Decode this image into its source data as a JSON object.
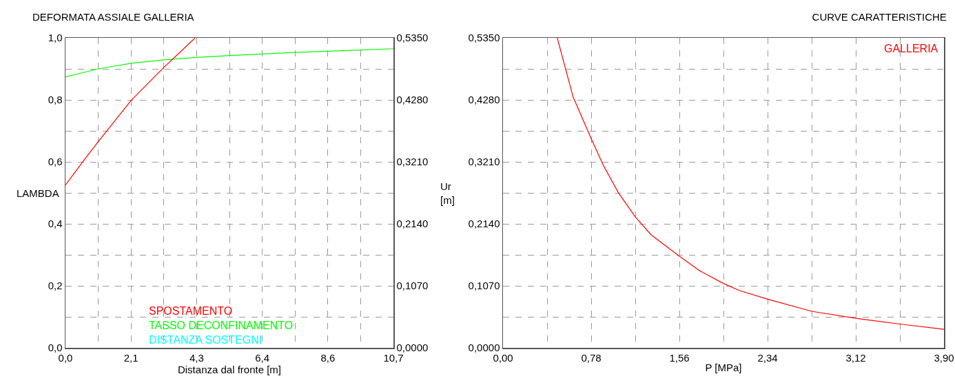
{
  "chart_data": [
    {
      "type": "line",
      "title": "DEFORMATA ASSIALE GALLERIA",
      "xlabel": "Distanza dal fronte [m]",
      "ylabel": "LAMBDA",
      "y2label": "Ur\n[m]",
      "legend": "bottom",
      "grid": true,
      "marker": "none",
      "line_style": "solid",
      "xlim": [
        0,
        10.7
      ],
      "xticks": [
        {
          "value": 0,
          "label": "0,0"
        },
        {
          "value": 1.07,
          "label": null
        },
        {
          "value": 2.14,
          "label": "2,1"
        },
        {
          "value": 3.21,
          "label": null
        },
        {
          "value": 4.28,
          "label": "4,3"
        },
        {
          "value": 5.35,
          "label": null
        },
        {
          "value": 6.42,
          "label": "6,4"
        },
        {
          "value": 7.49,
          "label": null
        },
        {
          "value": 8.56,
          "label": "8,6"
        },
        {
          "value": 9.63,
          "label": null
        },
        {
          "value": 10.7,
          "label": "10,7"
        }
      ],
      "ylim": [
        0,
        1
      ],
      "yticks": [
        {
          "value": 0,
          "label": "0,0"
        },
        {
          "value": 0.1,
          "label": null
        },
        {
          "value": 0.2,
          "label": "0,2"
        },
        {
          "value": 0.3,
          "label": null
        },
        {
          "value": 0.4,
          "label": "0,4"
        },
        {
          "value": 0.5,
          "label": null
        },
        {
          "value": 0.6,
          "label": "0,6"
        },
        {
          "value": 0.7,
          "label": null
        },
        {
          "value": 0.8,
          "label": "0,8"
        },
        {
          "value": 0.9,
          "label": null
        },
        {
          "value": 1,
          "label": "1,0"
        }
      ],
      "y2lim": [
        0,
        0.535
      ],
      "y2ticks": [
        {
          "value": 0,
          "label": "0,0000"
        },
        {
          "value": 0.0535,
          "label": null
        },
        {
          "value": 0.107,
          "label": "0,1070"
        },
        {
          "value": 0.1605,
          "label": null
        },
        {
          "value": 0.214,
          "label": "0,2140"
        },
        {
          "value": 0.2675,
          "label": null
        },
        {
          "value": 0.321,
          "label": "0,3210"
        },
        {
          "value": 0.3745,
          "label": null
        },
        {
          "value": 0.428,
          "label": "0,4280"
        },
        {
          "value": 0.4815,
          "label": null
        },
        {
          "value": 0.535,
          "label": "0,5350"
        }
      ],
      "series": [
        {
          "name": "SPOSTAMENTO",
          "color": "#ff0000",
          "axis": "y2",
          "x": [
            0,
            0.535,
            1.07,
            2.14,
            3.21,
            4.23
          ],
          "values": [
            0.281,
            0.319,
            0.356,
            0.427,
            0.484,
            0.535
          ]
        },
        {
          "name": "TASSO DECONFINAMENTO",
          "color": "#00ff00",
          "x": [
            0,
            1.07,
            2.14,
            3.21,
            4.28,
            5.35,
            6.42,
            7.49,
            8.56,
            9.63,
            10.7
          ],
          "values": [
            0.874,
            0.9,
            0.918,
            0.929,
            0.937,
            0.943,
            0.948,
            0.953,
            0.957,
            0.961,
            0.965
          ]
        },
        {
          "name": "DISTANZA SOSTEGNI",
          "color": "#00ffff"
        }
      ]
    },
    {
      "type": "line",
      "title": "CURVE CARATTERISTICHE",
      "xlabel": "P [MPa]",
      "legend": "top right",
      "grid": true,
      "marker": "none",
      "line_style": "solid",
      "xlim": [
        0,
        3.9
      ],
      "xticks": [
        {
          "value": 0,
          "label": "0,00"
        },
        {
          "value": 0.39,
          "label": null
        },
        {
          "value": 0.78,
          "label": "0,78"
        },
        {
          "value": 1.17,
          "label": null
        },
        {
          "value": 1.56,
          "label": "1,56"
        },
        {
          "value": 1.95,
          "label": null
        },
        {
          "value": 2.34,
          "label": "2,34"
        },
        {
          "value": 2.73,
          "label": null
        },
        {
          "value": 3.12,
          "label": "3,12"
        },
        {
          "value": 3.51,
          "label": null
        },
        {
          "value": 3.9,
          "label": "3,90"
        }
      ],
      "ylim": [
        0,
        0.535
      ],
      "yticks": [
        {
          "value": 0,
          "label": "0,0000"
        },
        {
          "value": 0.0535,
          "label": null
        },
        {
          "value": 0.107,
          "label": "0,1070"
        },
        {
          "value": 0.1605,
          "label": null
        },
        {
          "value": 0.214,
          "label": "0,2140"
        },
        {
          "value": 0.2675,
          "label": null
        },
        {
          "value": 0.321,
          "label": "0,3210"
        },
        {
          "value": 0.3745,
          "label": null
        },
        {
          "value": 0.428,
          "label": "0,4280"
        },
        {
          "value": 0.4815,
          "label": null
        },
        {
          "value": 0.535,
          "label": "0,5350"
        }
      ],
      "series": [
        {
          "name": "GALLERIA",
          "color": "#ff0000",
          "x": [
            0.48,
            0.62,
            0.78,
            0.89,
            1.02,
            1.17,
            1.31,
            1.56,
            1.74,
            1.95,
            2.09,
            2.34,
            2.73,
            3.12,
            3.51,
            3.9
          ],
          "values": [
            0.535,
            0.433,
            0.361,
            0.314,
            0.268,
            0.226,
            0.195,
            0.158,
            0.133,
            0.111,
            0.099,
            0.084,
            0.063,
            0.051,
            0.041,
            0.032
          ]
        }
      ]
    }
  ]
}
